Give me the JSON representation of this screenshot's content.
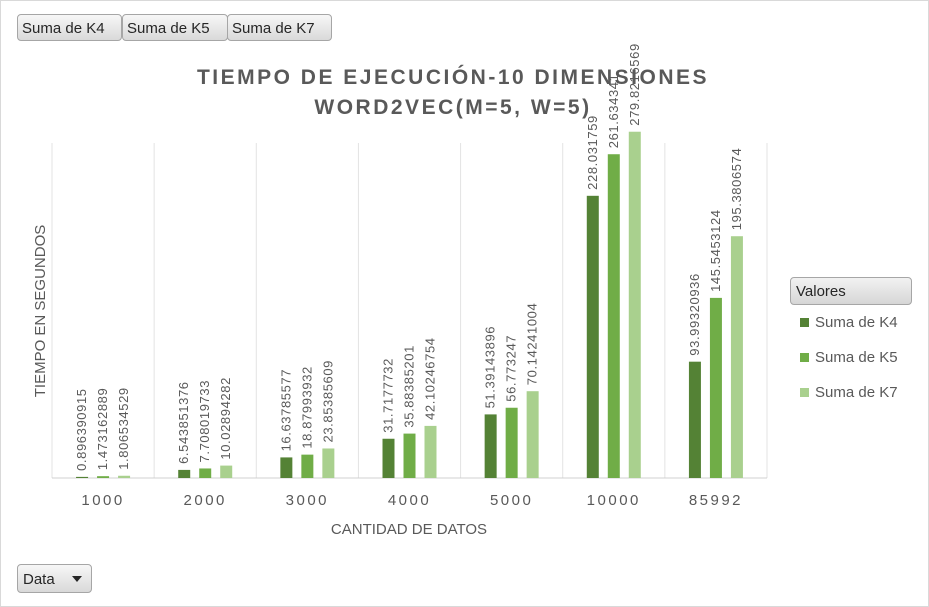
{
  "filter_buttons": [
    "Suma de K4",
    "Suma de K5",
    "Suma de K7"
  ],
  "data_button": {
    "label": "Data",
    "icon": "chevron-down-icon"
  },
  "legend": {
    "header": "Valores",
    "items": [
      {
        "label": "Suma de K4",
        "color": "#548235"
      },
      {
        "label": "Suma de K5",
        "color": "#70ad47"
      },
      {
        "label": "Suma de K7",
        "color": "#a9d08e"
      }
    ]
  },
  "chart_data": {
    "type": "bar",
    "title_lines": [
      "TIEMPO DE EJECUCIÓN-10 DIMENSIONES",
      "WORD2VEC(M=5, W=5)"
    ],
    "xlabel": "CANTIDAD DE DATOS",
    "ylabel": "TIEMPO EN SEGUNDOS",
    "categories": [
      "1000",
      "2000",
      "3000",
      "4000",
      "5000",
      "10000",
      "85992"
    ],
    "ylim": [
      0,
      320
    ],
    "grid": "vertical",
    "legend_position": "right",
    "series": [
      {
        "name": "Suma de K4",
        "color": "#548235",
        "values": [
          0.896390915,
          6.543851376,
          16.63785577,
          31.7177732,
          51.39143896,
          228.031759,
          93.99320936
        ],
        "labels": [
          "0.896390915",
          "6.543851376",
          "16.63785577",
          "31.7177732",
          "51.39143896",
          "228.031759",
          "93.99320936"
        ]
      },
      {
        "name": "Suma de K5",
        "color": "#70ad47",
        "values": [
          1.473162889,
          7.708019733,
          18.87993932,
          35.88385201,
          56.773247,
          261.634341,
          145.5453124
        ],
        "labels": [
          "1.473162889",
          "7.708019733",
          "18.87993932",
          "35.88385201",
          "56.773247",
          "261.634341",
          "145.5453124"
        ]
      },
      {
        "name": "Suma de K7",
        "color": "#a9d08e",
        "values": [
          1.806534529,
          10.02894282,
          23.85385609,
          42.10246754,
          70.14241004,
          279.8216569,
          195.3806574
        ],
        "labels": [
          "1.806534529",
          "10.02894282",
          "23.85385609",
          "42.10246754",
          "70.14241004",
          "279.8216569",
          "195.3806574"
        ]
      }
    ]
  }
}
